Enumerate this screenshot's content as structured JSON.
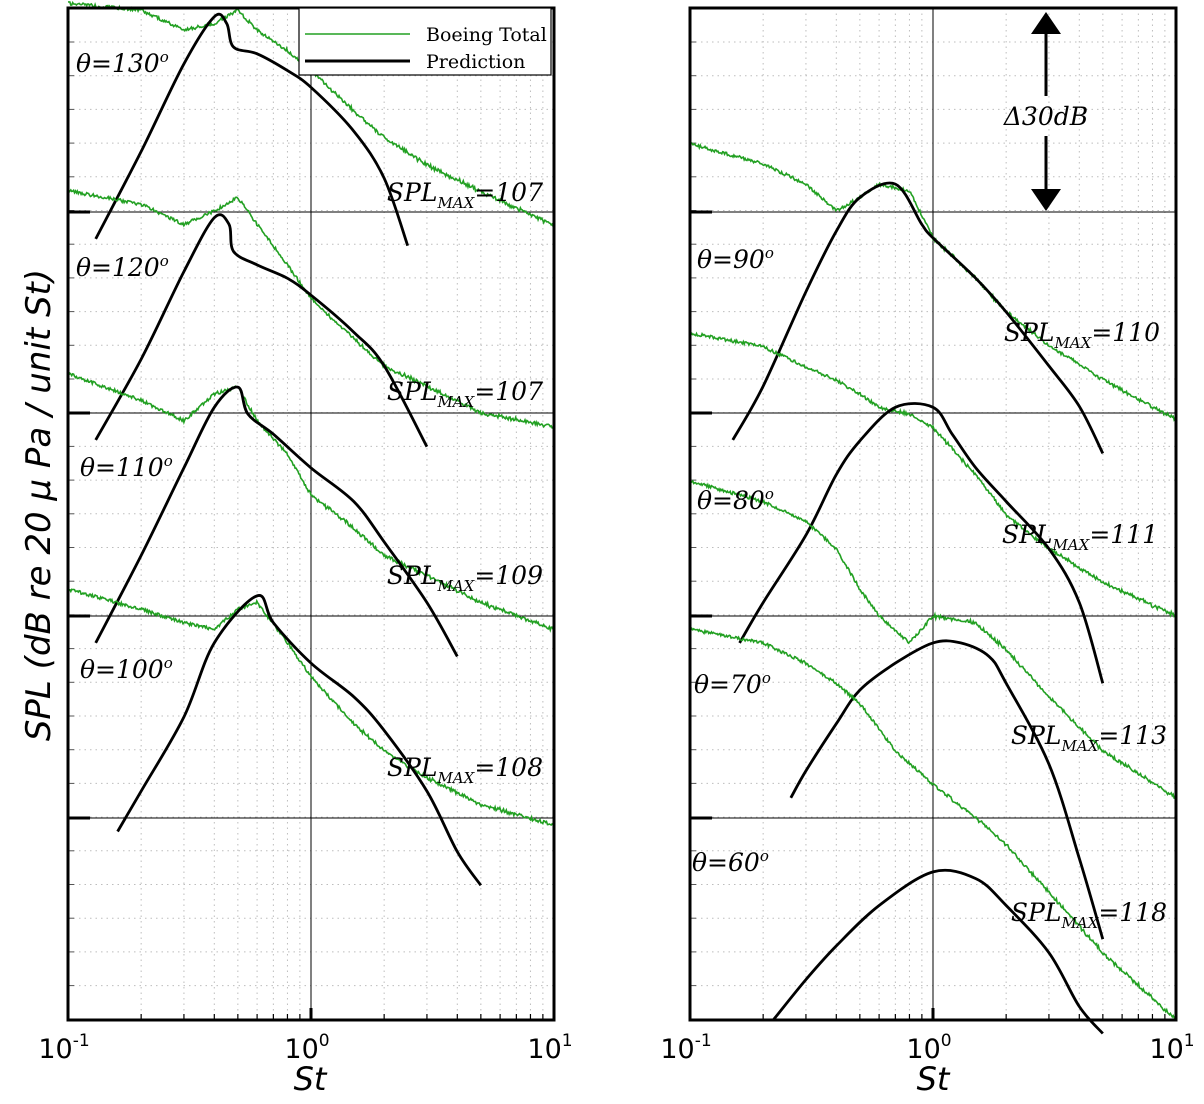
{
  "figure": {
    "ylabel": "SPL (dB re 20 μ Pa / unit St)",
    "xlabel": "St",
    "x_tick_base": "10",
    "x_tick_exponents": [
      "-1",
      "0",
      "1"
    ],
    "legend": [
      "Boeing Total",
      "Prediction"
    ],
    "delta_label": "Δ30dB",
    "colors": {
      "measured": "#22a022",
      "prediction": "#000000",
      "grid": "#bdbdbd",
      "axis": "#000000"
    }
  },
  "chart_data": [
    {
      "type": "line",
      "panel": "left",
      "xscale": "log",
      "xlim": [
        0.1,
        10
      ],
      "xlabel": "St",
      "ylabel": "SPL (dB re 20 μ Pa / unit St)",
      "grid": true,
      "legend_position": "top-right",
      "series_names": [
        "Boeing Total",
        "Prediction"
      ],
      "curves": [
        {
          "angle_label": "θ=130",
          "angle_sup": "o",
          "spl_label": "SPL",
          "spl_sub": "MAX",
          "spl_value": "=107",
          "baseline_level": 3,
          "measured": [
            [
              0.1,
              31
            ],
            [
              0.2,
              30
            ],
            [
              0.3,
              27
            ],
            [
              0.4,
              28
            ],
            [
              0.5,
              30
            ],
            [
              0.6,
              27
            ],
            [
              0.8,
              24
            ],
            [
              1.0,
              21
            ],
            [
              1.5,
              15
            ],
            [
              2.0,
              11
            ],
            [
              3.0,
              7
            ],
            [
              5.0,
              3
            ],
            [
              10.0,
              -2
            ]
          ],
          "prediction": [
            [
              0.13,
              -4
            ],
            [
              0.2,
              9
            ],
            [
              0.3,
              22
            ],
            [
              0.4,
              29
            ],
            [
              0.45,
              28
            ],
            [
              0.48,
              24.5
            ],
            [
              0.6,
              23.5
            ],
            [
              0.8,
              21
            ],
            [
              1.0,
              18.5
            ],
            [
              1.5,
              12
            ],
            [
              2.0,
              5
            ],
            [
              2.5,
              -5
            ]
          ]
        },
        {
          "angle_label": "θ=120",
          "angle_sup": "o",
          "spl_label": "SPL",
          "spl_sub": "MAX",
          "spl_value": "=107",
          "baseline_level": 2,
          "measured": [
            [
              0.1,
              33
            ],
            [
              0.2,
              31
            ],
            [
              0.3,
              28
            ],
            [
              0.4,
              30
            ],
            [
              0.5,
              32
            ],
            [
              0.6,
              28
            ],
            [
              0.8,
              22
            ],
            [
              1.0,
              17
            ],
            [
              1.5,
              11
            ],
            [
              2.0,
              7
            ],
            [
              3.0,
              4
            ],
            [
              5.0,
              0
            ],
            [
              10.0,
              -2
            ]
          ],
          "prediction": [
            [
              0.13,
              -4
            ],
            [
              0.2,
              8
            ],
            [
              0.3,
              21
            ],
            [
              0.4,
              29
            ],
            [
              0.46,
              28
            ],
            [
              0.48,
              24
            ],
            [
              0.6,
              22
            ],
            [
              0.8,
              20
            ],
            [
              1.0,
              17.5
            ],
            [
              1.5,
              12
            ],
            [
              2.0,
              7
            ],
            [
              3.0,
              -5
            ]
          ]
        },
        {
          "angle_label": "θ=110",
          "angle_sup": "o",
          "spl_label": "SPL",
          "spl_sub": "MAX",
          "spl_value": "=109",
          "baseline_level": 1,
          "measured": [
            [
              0.1,
              36
            ],
            [
              0.2,
              32
            ],
            [
              0.3,
              29
            ],
            [
              0.4,
              33
            ],
            [
              0.5,
              34
            ],
            [
              0.6,
              29
            ],
            [
              0.8,
              24
            ],
            [
              1.0,
              18
            ],
            [
              1.5,
              13
            ],
            [
              2.0,
              9
            ],
            [
              3.0,
              6
            ],
            [
              5.0,
              2
            ],
            [
              10.0,
              -2
            ]
          ],
          "prediction": [
            [
              0.13,
              -4
            ],
            [
              0.2,
              9
            ],
            [
              0.3,
              22
            ],
            [
              0.4,
              31
            ],
            [
              0.5,
              34
            ],
            [
              0.55,
              30
            ],
            [
              0.7,
              27
            ],
            [
              1.0,
              22
            ],
            [
              1.5,
              17
            ],
            [
              2.0,
              11
            ],
            [
              3.0,
              2
            ],
            [
              4.0,
              -6
            ]
          ]
        },
        {
          "angle_label": "θ=100",
          "angle_sup": "o",
          "spl_label": "SPL",
          "spl_sub": "MAX",
          "spl_value": "=108",
          "baseline_level": 0,
          "measured": [
            [
              0.1,
              34
            ],
            [
              0.2,
              31
            ],
            [
              0.3,
              29
            ],
            [
              0.4,
              28
            ],
            [
              0.5,
              31
            ],
            [
              0.6,
              32
            ],
            [
              0.8,
              26
            ],
            [
              1.0,
              21
            ],
            [
              1.5,
              14
            ],
            [
              2.0,
              10
            ],
            [
              3.0,
              6
            ],
            [
              5.0,
              2
            ],
            [
              10.0,
              -1
            ]
          ],
          "prediction": [
            [
              0.16,
              -2
            ],
            [
              0.2,
              4
            ],
            [
              0.3,
              15
            ],
            [
              0.4,
              26
            ],
            [
              0.6,
              33
            ],
            [
              0.7,
              29
            ],
            [
              1.0,
              23
            ],
            [
              1.5,
              18
            ],
            [
              2.0,
              13
            ],
            [
              3.0,
              4
            ],
            [
              4.0,
              -5
            ],
            [
              5.0,
              -10
            ]
          ]
        }
      ]
    },
    {
      "type": "line",
      "panel": "right",
      "xscale": "log",
      "xlim": [
        0.1,
        10
      ],
      "xlabel": "St",
      "ylabel": "SPL (dB re 20 μ Pa / unit St)",
      "grid": true,
      "legend_position": "none",
      "series_names": [
        "Boeing Total",
        "Prediction"
      ],
      "curves": [
        {
          "angle_label": "θ=90",
          "angle_sup": "o",
          "spl_label": "SPL",
          "spl_sub": "MAX",
          "spl_value": "=110",
          "baseline_level": 2,
          "measured": [
            [
              0.1,
              40
            ],
            [
              0.2,
              37
            ],
            [
              0.3,
              34
            ],
            [
              0.4,
              30
            ],
            [
              0.5,
              32
            ],
            [
              0.6,
              34
            ],
            [
              0.8,
              33
            ],
            [
              1.0,
              26
            ],
            [
              1.5,
              20
            ],
            [
              2.0,
              15
            ],
            [
              3.0,
              10
            ],
            [
              5.0,
              5
            ],
            [
              10.0,
              -1
            ]
          ],
          "prediction": [
            [
              0.15,
              -4
            ],
            [
              0.2,
              4
            ],
            [
              0.3,
              18
            ],
            [
              0.4,
              27
            ],
            [
              0.5,
              32
            ],
            [
              0.7,
              34
            ],
            [
              0.9,
              28
            ],
            [
              1.0,
              26
            ],
            [
              1.5,
              20
            ],
            [
              2.0,
              15
            ],
            [
              3.0,
              7
            ],
            [
              4.0,
              1
            ],
            [
              5.0,
              -6
            ]
          ]
        },
        {
          "angle_label": "θ=80",
          "angle_sup": "o",
          "spl_label": "SPL",
          "spl_sub": "MAX",
          "spl_value": "=111",
          "baseline_level": 1,
          "measured": [
            [
              0.1,
              42
            ],
            [
              0.2,
              40
            ],
            [
              0.3,
              37
            ],
            [
              0.4,
              35
            ],
            [
              0.5,
              33
            ],
            [
              0.6,
              31
            ],
            [
              0.8,
              30
            ],
            [
              1.0,
              28
            ],
            [
              1.5,
              21
            ],
            [
              2.0,
              15
            ],
            [
              3.0,
              10
            ],
            [
              5.0,
              5
            ],
            [
              10.0,
              0
            ]
          ],
          "prediction": [
            [
              0.16,
              -4
            ],
            [
              0.2,
              2
            ],
            [
              0.3,
              12
            ],
            [
              0.4,
              21
            ],
            [
              0.5,
              26
            ],
            [
              0.7,
              31
            ],
            [
              1.0,
              31
            ],
            [
              1.2,
              27
            ],
            [
              1.5,
              22
            ],
            [
              2.0,
              17
            ],
            [
              3.0,
              10
            ],
            [
              4.0,
              2
            ],
            [
              5.0,
              -10
            ]
          ]
        },
        {
          "angle_label": "θ=70",
          "angle_sup": "o",
          "spl_label": "SPL",
          "spl_sub": "MAX",
          "spl_value": "=113",
          "baseline_level": 0,
          "measured": [
            [
              0.1,
              50
            ],
            [
              0.2,
              47
            ],
            [
              0.3,
              44
            ],
            [
              0.4,
              40
            ],
            [
              0.5,
              34
            ],
            [
              0.6,
              30
            ],
            [
              0.8,
              26
            ],
            [
              1.0,
              30
            ],
            [
              1.5,
              29
            ],
            [
              2.0,
              25
            ],
            [
              3.0,
              18
            ],
            [
              5.0,
              10
            ],
            [
              10.0,
              3
            ]
          ],
          "prediction": [
            [
              0.26,
              3
            ],
            [
              0.3,
              7
            ],
            [
              0.4,
              14
            ],
            [
              0.5,
              19
            ],
            [
              0.7,
              23
            ],
            [
              1.0,
              26
            ],
            [
              1.3,
              26
            ],
            [
              1.7,
              24
            ],
            [
              2.0,
              20
            ],
            [
              3.0,
              8
            ],
            [
              4.0,
              -6
            ],
            [
              5.0,
              -18
            ]
          ]
        },
        {
          "angle_label": "θ=60",
          "angle_sup": "o",
          "spl_label": "SPL",
          "spl_sub": "MAX",
          "spl_value": "=118",
          "baseline_level": -1,
          "measured": [
            [
              0.1,
              58
            ],
            [
              0.2,
              56
            ],
            [
              0.3,
              53
            ],
            [
              0.4,
              50
            ],
            [
              0.5,
              47
            ],
            [
              0.7,
              40
            ],
            [
              1.0,
              35
            ],
            [
              1.5,
              30
            ],
            [
              2.0,
              26
            ],
            [
              3.0,
              19
            ],
            [
              5.0,
              10
            ],
            [
              10.0,
              0
            ]
          ],
          "prediction": [
            [
              0.22,
              0
            ],
            [
              0.3,
              6
            ],
            [
              0.4,
              11
            ],
            [
              0.6,
              17
            ],
            [
              1.0,
              22
            ],
            [
              1.5,
              21
            ],
            [
              2.0,
              17
            ],
            [
              3.0,
              10
            ],
            [
              4.0,
              2
            ],
            [
              5.0,
              -2
            ]
          ]
        }
      ]
    }
  ]
}
